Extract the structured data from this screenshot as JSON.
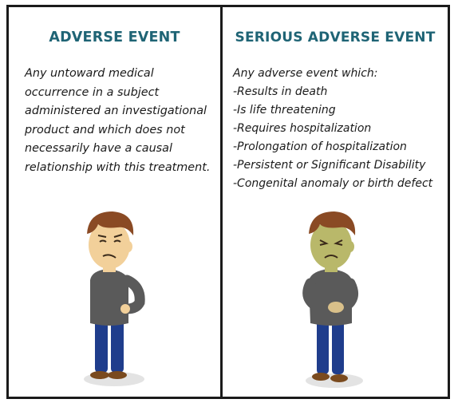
{
  "panels": {
    "adverse": {
      "title": "ADVERSE EVENT",
      "lines": [
        "Any untoward medical",
        "occurrence in a subject",
        "administered an investigational",
        "product and which does not",
        "necessarily have a causal",
        "relationship with this treatment."
      ],
      "figure_icon": "uneasy-man-icon",
      "skin_color": "#f2d09a"
    },
    "serious": {
      "title": "SERIOUS ADVERSE EVENT",
      "lines": [
        "Any adverse event which:",
        "-Results in death",
        "-Is life threatening",
        "-Requires hospitalization",
        "-Prolongation of hospitalization",
        "-Persistent or Significant Disability",
        "-Congenital anomaly or birth defect"
      ],
      "figure_icon": "sick-man-icon",
      "skin_color": "#b9b86a"
    }
  },
  "colors": {
    "heading": "#1f6475",
    "hair": "#8a4a24",
    "shirt": "#5a5a5a",
    "pants": "#1f3d8c",
    "shoes": "#7a4a1e",
    "border": "#1b1b1b"
  }
}
